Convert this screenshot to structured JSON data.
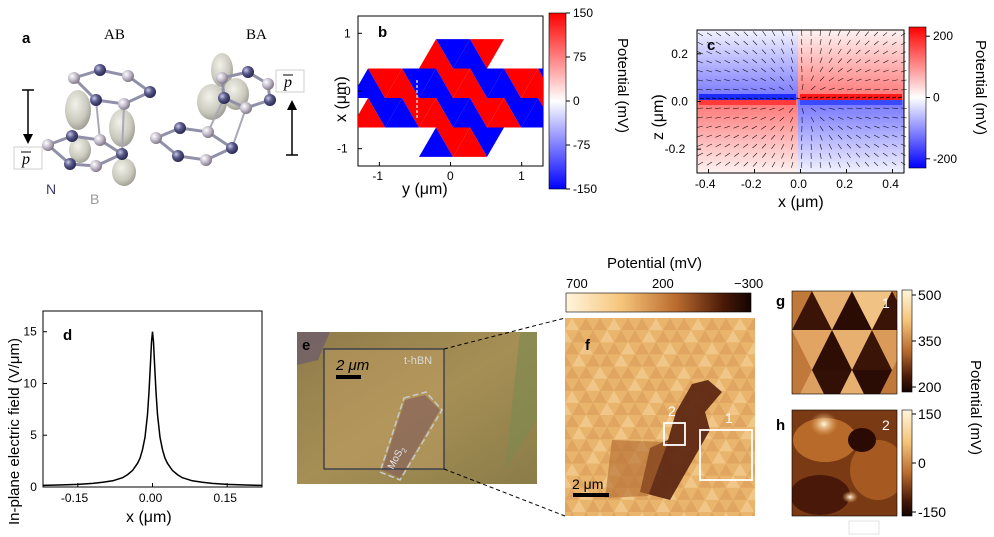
{
  "chart_data": [
    {
      "panel": "a",
      "type": "other",
      "labels": {
        "left": "AB",
        "right": "BA",
        "n": "N",
        "b": "B",
        "p_left": "p",
        "p_right": "p"
      }
    },
    {
      "panel": "b",
      "type": "heatmap",
      "xlabel": "y (μm)",
      "ylabel": "x (μm)",
      "xticks": [
        "-1",
        "0",
        "1"
      ],
      "yticks": [
        "-1",
        "0",
        "1"
      ],
      "xlim": [
        -1.3,
        1.3
      ],
      "ylim": [
        -1.3,
        1.3
      ],
      "colorbar": {
        "label": "Potential (mV)",
        "ticks": [
          "150",
          "75",
          "0",
          "-75",
          "-150"
        ],
        "range": [
          -150,
          150
        ],
        "colors": [
          "#0000ff",
          "#ffffff",
          "#ff0000"
        ]
      },
      "domain_values_mV": [
        150,
        -150
      ]
    },
    {
      "panel": "c",
      "type": "heatmap",
      "xlabel": "x (μm)",
      "ylabel": "z (μm)",
      "xticks": [
        "-0.4",
        "-0.2",
        "0.0",
        "0.2",
        "0.4"
      ],
      "yticks": [
        "0.2",
        "0.0",
        "-0.2"
      ],
      "xlim": [
        -0.45,
        0.45
      ],
      "ylim": [
        -0.3,
        0.3
      ],
      "colorbar": {
        "label": "Potential (mV)",
        "ticks": [
          "200",
          "0",
          "-200"
        ],
        "range": [
          -230,
          230
        ],
        "colors": [
          "#0000ff",
          "#ffffff",
          "#ff0000"
        ]
      }
    },
    {
      "panel": "d",
      "type": "line",
      "xlabel": "x (μm)",
      "ylabel": "In-plane electric field (V/μm)",
      "xticks": [
        "-0.15",
        "0.00",
        "0.15"
      ],
      "yticks": [
        "15",
        "10",
        "5",
        "0"
      ],
      "xlim": [
        -0.22,
        0.22
      ],
      "ylim": [
        0,
        17
      ],
      "series": [
        {
          "x": [
            -0.22,
            -0.18,
            -0.15,
            -0.12,
            -0.1,
            -0.08,
            -0.06,
            -0.05,
            -0.04,
            -0.03,
            -0.025,
            -0.02,
            -0.015,
            -0.01,
            -0.007,
            -0.004,
            -0.002,
            0,
            0.002,
            0.004,
            0.007,
            0.01,
            0.015,
            0.02,
            0.025,
            0.03,
            0.04,
            0.05,
            0.06,
            0.08,
            0.1,
            0.12,
            0.15,
            0.18,
            0.22
          ],
          "y": [
            0.15,
            0.2,
            0.25,
            0.35,
            0.45,
            0.6,
            0.9,
            1.2,
            1.6,
            2.3,
            2.8,
            3.6,
            4.8,
            7.0,
            9.2,
            12.0,
            14.0,
            15.0,
            14.0,
            12.0,
            9.2,
            7.0,
            4.8,
            3.6,
            2.8,
            2.3,
            1.6,
            1.2,
            0.9,
            0.6,
            0.45,
            0.35,
            0.25,
            0.2,
            0.15
          ]
        }
      ]
    },
    {
      "panel": "e",
      "type": "other",
      "labels": {
        "scale": "2 μm",
        "hbn": "t-hBN",
        "mos2": "MoS",
        "mos2_sub": "2"
      }
    },
    {
      "panel": "f",
      "type": "heatmap",
      "title": "Potential (mV)",
      "colorbar": {
        "ticks": [
          "700",
          "200",
          "−300"
        ],
        "range": [
          700,
          -300
        ]
      },
      "labels": {
        "scale": "2 μm",
        "box1": "1",
        "box2": "2"
      }
    },
    {
      "panel": "g",
      "type": "heatmap",
      "colorbar": {
        "ticks": [
          "500",
          "350",
          "200"
        ],
        "range": [
          200,
          500
        ]
      },
      "labels": {
        "region": "1"
      }
    },
    {
      "panel": "h",
      "type": "heatmap",
      "colorbar": {
        "ticks": [
          "150",
          "0",
          "-150"
        ],
        "range": [
          -150,
          150
        ]
      },
      "labels": {
        "region": "2"
      }
    }
  ],
  "shared": {
    "gh_colorbar_label": "Potential (mV)"
  },
  "colors": {
    "red": "#ff0000",
    "blue": "#0000ff",
    "hot_dark": "#160500",
    "hot_mid": "#b5601a",
    "hot_light": "#fff2d2"
  }
}
